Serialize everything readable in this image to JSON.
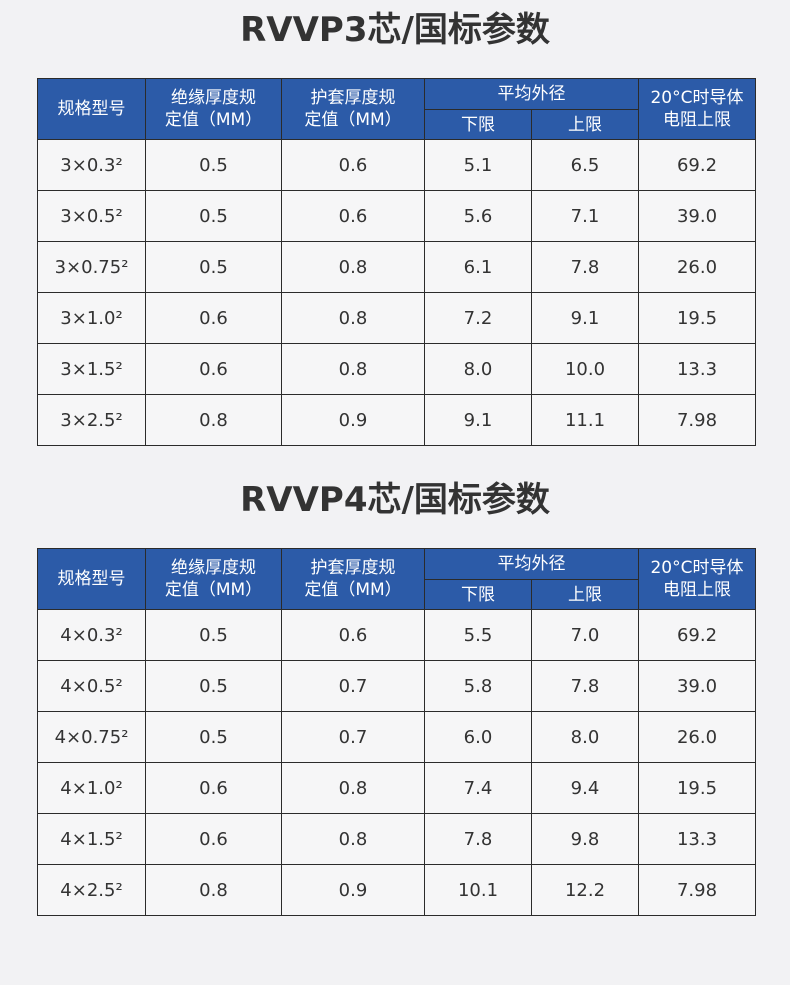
{
  "tables": [
    {
      "title": "RVVP3芯/国标参数",
      "header": {
        "spec": [
          "规格型号"
        ],
        "insulation": [
          "绝缘厚度规",
          "定值（MM）"
        ],
        "sheath": [
          "护套厚度规",
          "定值（MM）"
        ],
        "diameter": "平均外径",
        "lower": "下限",
        "upper": "上限",
        "resistance": [
          "20°C时导体",
          "电阻上限"
        ]
      },
      "rows": [
        [
          "3×0.3²",
          "0.5",
          "0.6",
          "5.1",
          "6.5",
          "69.2"
        ],
        [
          "3×0.5²",
          "0.5",
          "0.6",
          "5.6",
          "7.1",
          "39.0"
        ],
        [
          "3×0.75²",
          "0.5",
          "0.8",
          "6.1",
          "7.8",
          "26.0"
        ],
        [
          "3×1.0²",
          "0.6",
          "0.8",
          "7.2",
          "9.1",
          "19.5"
        ],
        [
          "3×1.5²",
          "0.6",
          "0.8",
          "8.0",
          "10.0",
          "13.3"
        ],
        [
          "3×2.5²",
          "0.8",
          "0.9",
          "9.1",
          "11.1",
          "7.98"
        ]
      ]
    },
    {
      "title": "RVVP4芯/国标参数",
      "header": {
        "spec": [
          "规格型号"
        ],
        "insulation": [
          "绝缘厚度规",
          "定值（MM）"
        ],
        "sheath": [
          "护套厚度规",
          "定值（MM）"
        ],
        "diameter": "平均外径",
        "lower": "下限",
        "upper": "上限",
        "resistance": [
          "20°C时导体",
          "电阻上限"
        ]
      },
      "rows": [
        [
          "4×0.3²",
          "0.5",
          "0.6",
          "5.5",
          "7.0",
          "69.2"
        ],
        [
          "4×0.5²",
          "0.5",
          "0.7",
          "5.8",
          "7.8",
          "39.0"
        ],
        [
          "4×0.75²",
          "0.5",
          "0.7",
          "6.0",
          "8.0",
          "26.0"
        ],
        [
          "4×1.0²",
          "0.6",
          "0.8",
          "7.4",
          "9.4",
          "19.5"
        ],
        [
          "4×1.5²",
          "0.6",
          "0.8",
          "7.8",
          "9.8",
          "13.3"
        ],
        [
          "4×2.5²",
          "0.8",
          "0.9",
          "10.1",
          "12.2",
          "7.98"
        ]
      ]
    }
  ]
}
